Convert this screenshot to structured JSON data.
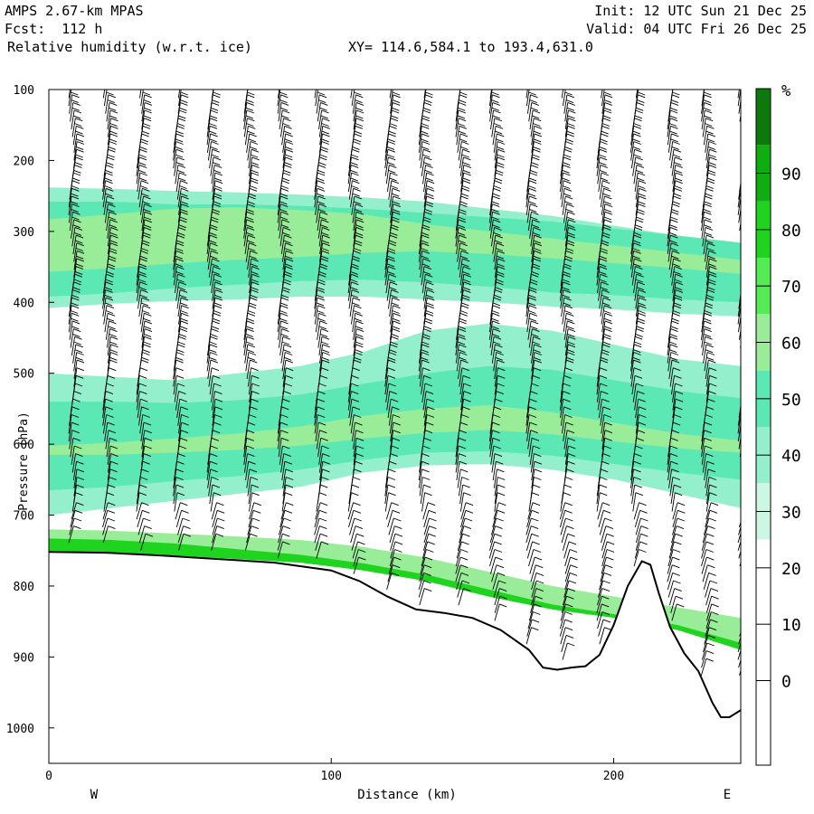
{
  "header": {
    "model": "AMPS 2.67-km MPAS",
    "forecast": "Fcst:  112 h",
    "field": "Relative humidity (w.r.t. ice)",
    "init": "Init: 12 UTC Sun 21 Dec 25",
    "valid": "Valid: 04 UTC Fri 26 Dec 25",
    "xy": "XY= 114.6,584.1 to 193.4,631.0"
  },
  "colorbar": {
    "unit": "%",
    "colors": [
      "#ffffff",
      "#ffffff",
      "#ffffff",
      "#ffffff",
      "#cdf7e3",
      "#94f0cc",
      "#5be8b5",
      "#99ed99",
      "#54eb54",
      "#1fd41f",
      "#0fad0f",
      "#0b7a0b"
    ],
    "labels": [
      "0",
      "10",
      "20",
      "30",
      "40",
      "50",
      "60",
      "70",
      "80",
      "90"
    ]
  },
  "chart_data": {
    "type": "heatmap",
    "title": "Relative humidity (w.r.t. ice)",
    "xlabel": "Distance (km)",
    "ylabel": "Pressure (hPa)",
    "x_ticks": [
      0,
      100,
      200
    ],
    "y_ticks": [
      100,
      200,
      300,
      400,
      500,
      600,
      700,
      800,
      900,
      1000
    ],
    "xlim": [
      0,
      245
    ],
    "ylim": [
      1050,
      100
    ],
    "x_end_labels": [
      "W",
      "E"
    ],
    "surface_pressure": {
      "x": [
        0,
        20,
        40,
        60,
        80,
        100,
        110,
        120,
        130,
        140,
        150,
        160,
        170,
        175,
        180,
        185,
        190,
        195,
        200,
        205,
        210,
        213,
        216,
        220,
        225,
        230,
        235,
        238,
        241,
        245
      ],
      "p": [
        752,
        753,
        757,
        762,
        767,
        778,
        793,
        815,
        833,
        838,
        845,
        862,
        890,
        915,
        918,
        915,
        913,
        897,
        855,
        800,
        765,
        770,
        810,
        858,
        895,
        920,
        965,
        985,
        985,
        975
      ]
    },
    "rh_layers": [
      {
        "rh": 40,
        "top": [
          238,
          240,
          243,
          245,
          248,
          252,
          258,
          268,
          278,
          292,
          306,
          317
        ],
        "bottom": [
          408,
          402,
          398,
          396,
          392,
          392,
          396,
          400,
          406,
          410,
          416,
          420
        ]
      },
      {
        "rh": 50,
        "top": [
          258,
          258,
          262,
          262,
          264,
          268,
          274,
          280,
          286,
          296,
          306,
          316
        ],
        "bottom": [
          392,
          387,
          380,
          375,
          370,
          368,
          372,
          378,
          386,
          390,
          396,
          400
        ]
      },
      {
        "rh": 60,
        "top": [
          283,
          276,
          268,
          266,
          270,
          276,
          290,
          300,
          310,
          320,
          330,
          340
        ],
        "bottom": [
          357,
          352,
          345,
          340,
          336,
          330,
          328,
          332,
          338,
          345,
          352,
          360
        ]
      },
      {
        "rh": 40,
        "top": [
          500,
          505,
          510,
          500,
          490,
          470,
          440,
          430,
          440,
          460,
          480,
          490
        ],
        "bottom": [
          700,
          690,
          680,
          670,
          660,
          640,
          630,
          628,
          636,
          650,
          670,
          690
        ]
      },
      {
        "rh": 50,
        "top": [
          540,
          540,
          542,
          538,
          530,
          515,
          500,
          490,
          495,
          510,
          525,
          535
        ],
        "bottom": [
          665,
          660,
          652,
          645,
          636,
          622,
          612,
          610,
          616,
          628,
          640,
          650
        ]
      },
      {
        "rh": 60,
        "top": [
          602,
          598,
          592,
          585,
          575,
          560,
          550,
          545,
          555,
          570,
          585,
          595
        ],
        "bottom": [
          615,
          615,
          612,
          608,
          602,
          592,
          584,
          580,
          586,
          596,
          606,
          612
        ]
      },
      {
        "rh": 60,
        "top": [
          720,
          722,
          726,
          730,
          735,
          745,
          760,
          780,
          800,
          815,
          830,
          845
        ],
        "bottom": [
          752,
          753,
          757,
          762,
          767,
          778,
          793,
          815,
          833,
          845,
          862,
          890
        ]
      },
      {
        "rh": 80,
        "top": [
          733,
          735,
          740,
          748,
          756,
          768,
          784,
          805,
          826,
          840,
          855,
          880
        ],
        "bottom": [
          752,
          753,
          757,
          762,
          767,
          778,
          793,
          815,
          833,
          845,
          862,
          890
        ]
      }
    ],
    "wind_barb_x": [
      8,
      20,
      32,
      45,
      57,
      70,
      82,
      95,
      107,
      120,
      132,
      145,
      157,
      170,
      182,
      195,
      207,
      220,
      232,
      245
    ]
  }
}
